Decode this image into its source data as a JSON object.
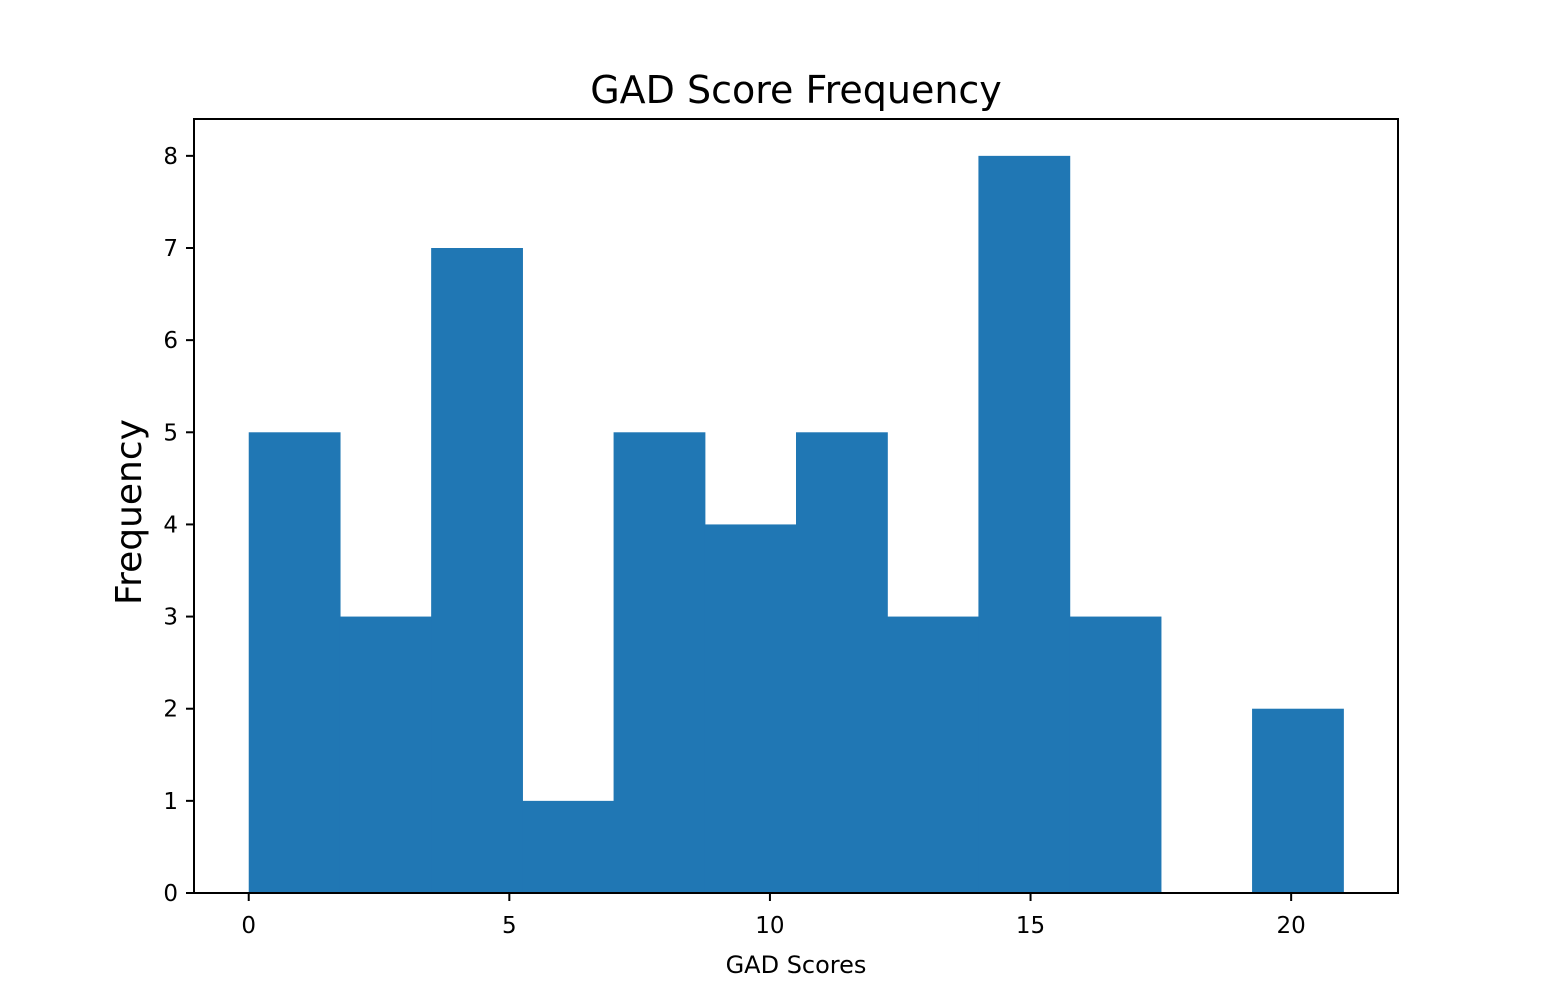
{
  "chart_data": {
    "type": "bar",
    "title": "GAD Score Frequency",
    "xlabel": "GAD Scores",
    "ylabel": "Frequency",
    "bin_edges": [
      0,
      1.75,
      3.5,
      5.25,
      7,
      8.75,
      10.5,
      12.25,
      14,
      15.75,
      17.5,
      19.25,
      21
    ],
    "values": [
      5,
      3,
      7,
      1,
      5,
      4,
      5,
      3,
      8,
      3,
      0,
      2
    ],
    "xlim": [
      -1.05,
      22.05
    ],
    "ylim": [
      0,
      8.4
    ],
    "xticks": [
      0,
      5,
      10,
      15,
      20
    ],
    "yticks": [
      0,
      1,
      2,
      3,
      4,
      5,
      6,
      7,
      8
    ],
    "grid": false,
    "legend": "none",
    "colors": {
      "bar": "#2077b4",
      "axes": "#000000",
      "background": "#ffffff"
    }
  }
}
